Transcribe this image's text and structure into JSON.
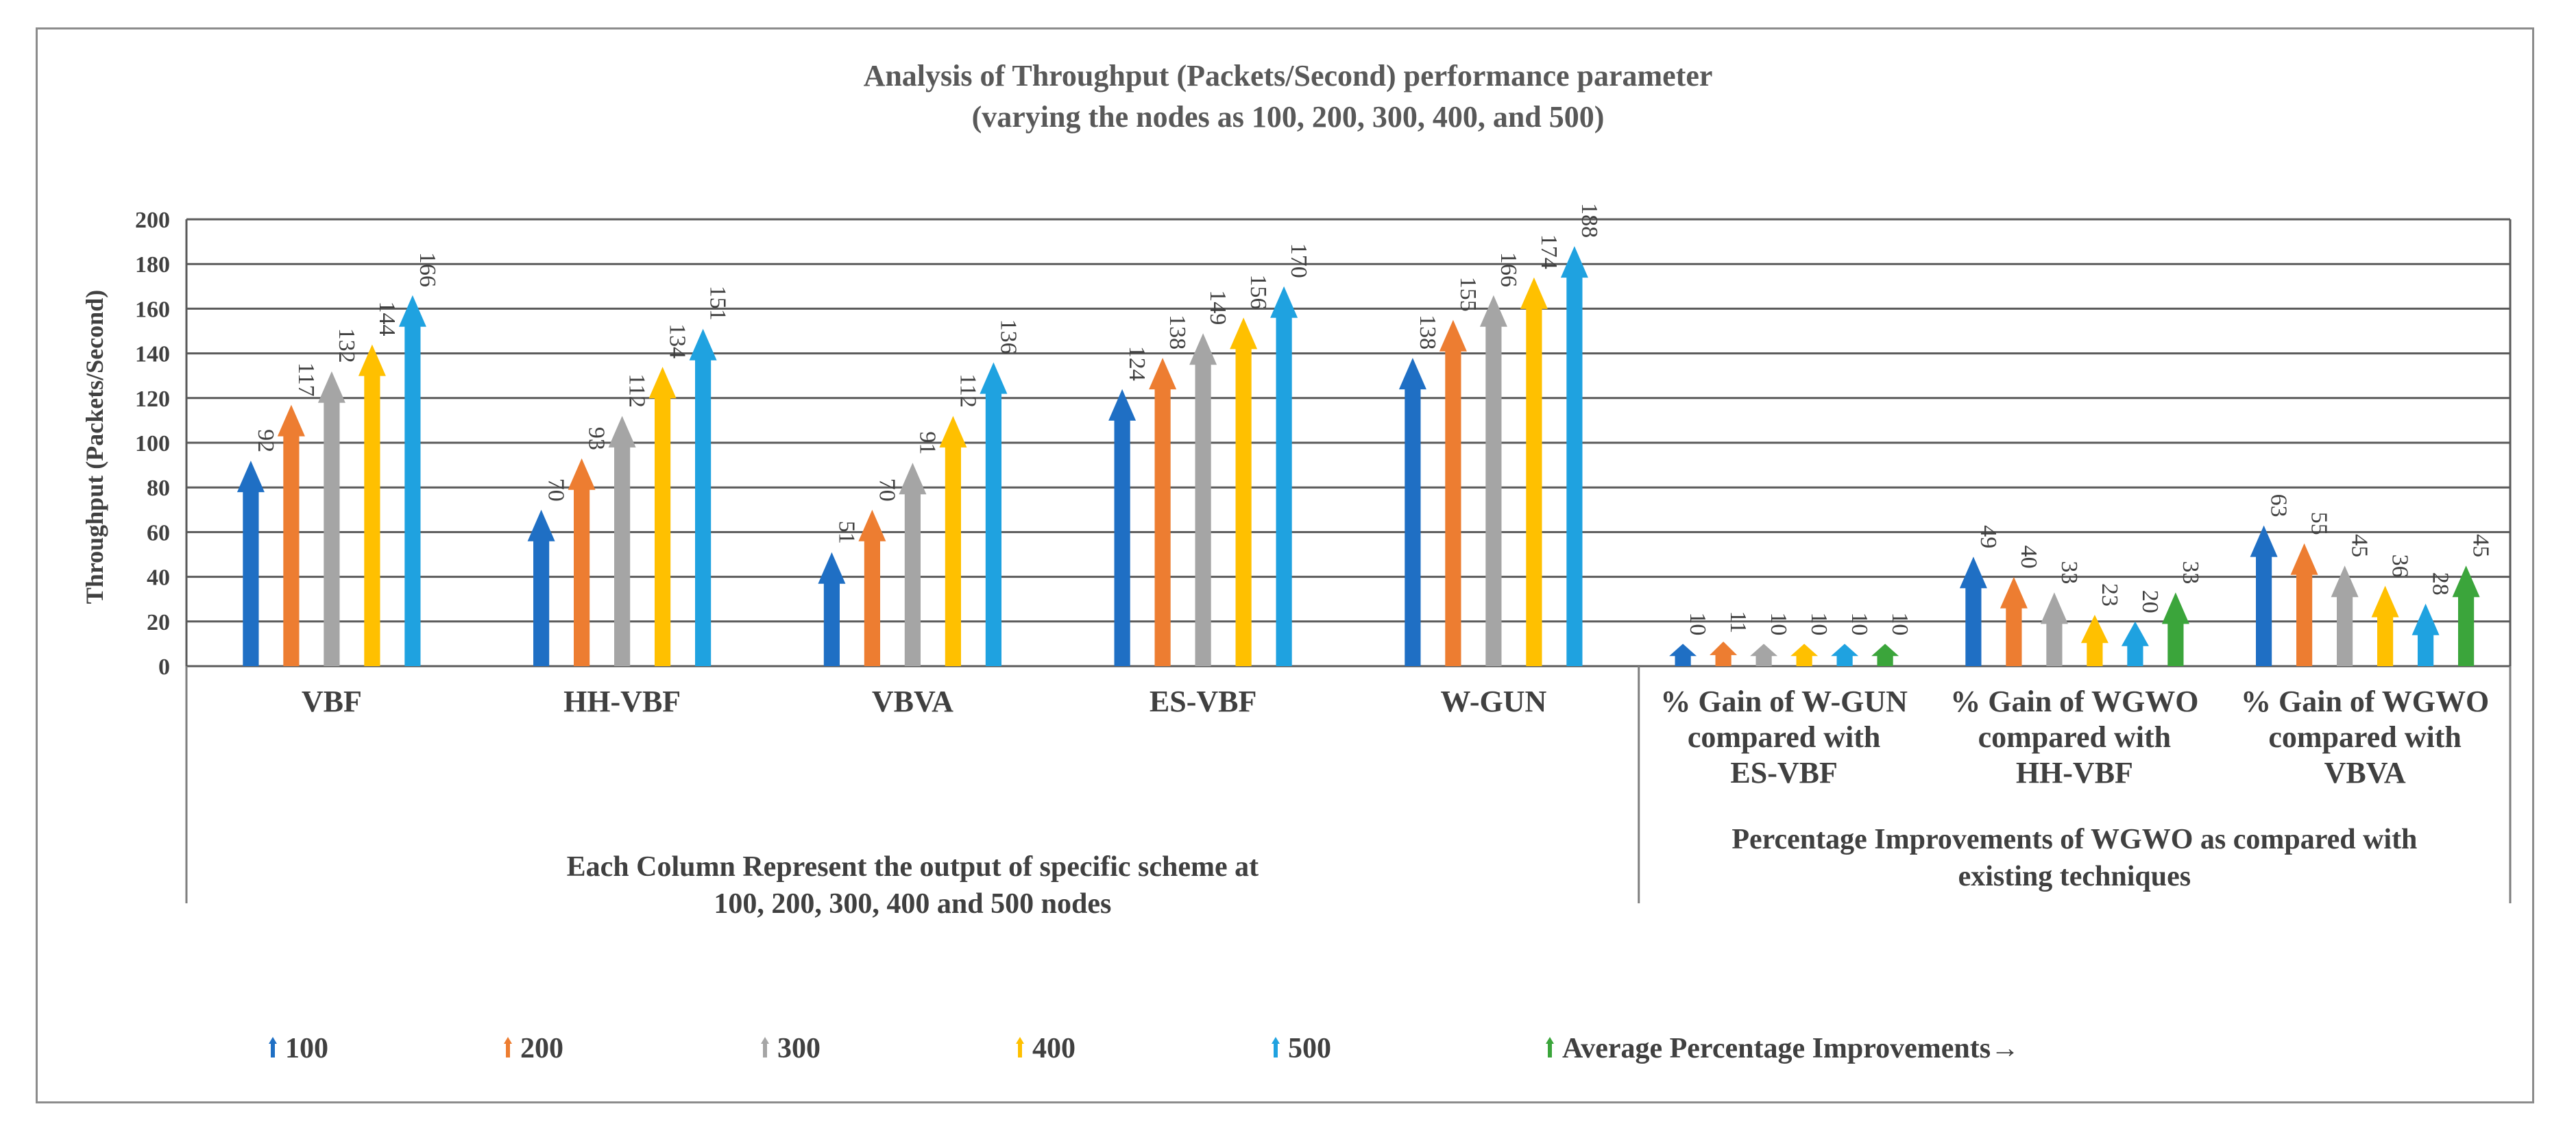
{
  "chart_data": {
    "type": "bar",
    "title": "Analysis of Throughput (Packets/Second) performance parameter",
    "subtitle": "(varying the nodes as 100, 200, 300, 400, and 500)",
    "ylabel": "Throughput (Packets/Second)",
    "ylim": [
      0,
      200
    ],
    "yticks": [
      0,
      20,
      40,
      60,
      80,
      100,
      120,
      140,
      160,
      180,
      200
    ],
    "grid": true,
    "legend_position": "bottom",
    "categories": [
      "VBF",
      "HH-VBF",
      "VBVA",
      "ES-VBF",
      "W-GUN",
      "% Gain of W-GUN compared with ES-VBF",
      "% Gain of WGWO compared with HH-VBF",
      "% Gain of WGWO compared with VBVA"
    ],
    "category_lines": [
      [
        "VBF"
      ],
      [
        "HH-VBF"
      ],
      [
        "VBVA"
      ],
      [
        "ES-VBF"
      ],
      [
        "W-GUN"
      ],
      [
        "% Gain of W-GUN",
        "compared with",
        "ES-VBF"
      ],
      [
        "% Gain of WGWO",
        "compared with",
        "HH-VBF"
      ],
      [
        "% Gain of WGWO",
        "compared with",
        "VBVA"
      ]
    ],
    "groups": [
      {
        "label_lines": [
          "Each Column Represent the output of specific scheme at",
          "100, 200, 300, 400 and 500 nodes"
        ],
        "categories": 5
      },
      {
        "label_lines": [
          "Percentage Improvements of WGWO as compared with",
          "existing techniques"
        ],
        "categories": 3
      }
    ],
    "series": [
      {
        "name": "100",
        "color": "#1F6FC4",
        "values": [
          92,
          70,
          51,
          124,
          138,
          10,
          49,
          63
        ]
      },
      {
        "name": "200",
        "color": "#ED7D31",
        "values": [
          117,
          93,
          70,
          138,
          155,
          11,
          40,
          55
        ]
      },
      {
        "name": "300",
        "color": "#A5A5A5",
        "values": [
          132,
          112,
          91,
          149,
          166,
          10,
          33,
          45
        ]
      },
      {
        "name": "400",
        "color": "#FFC000",
        "values": [
          144,
          134,
          112,
          156,
          174,
          10,
          23,
          36
        ]
      },
      {
        "name": "500",
        "color": "#1FA2E0",
        "values": [
          166,
          151,
          136,
          170,
          188,
          10,
          20,
          28
        ]
      },
      {
        "name": "Average Percentage Improvements→",
        "color": "#3BA53B",
        "values": [
          null,
          null,
          null,
          null,
          null,
          10,
          33,
          45
        ]
      }
    ]
  }
}
